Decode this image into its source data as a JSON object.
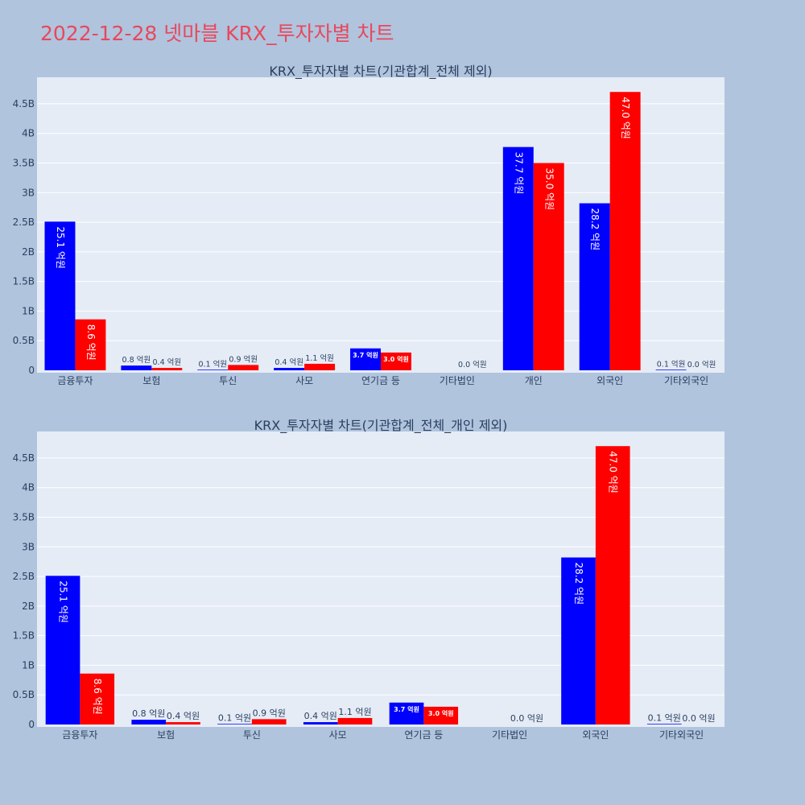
{
  "title": "2022-12-28 넷마블 KRX_투자자별 차트",
  "colors": {
    "background": "#b0c4de",
    "plot_bg": "#e5ecf6",
    "title": "#e8485c",
    "series_1": "#0000ff",
    "series_2": "#ff0000",
    "axis_text": "#2a3f5f"
  },
  "chart_data": [
    {
      "type": "bar",
      "title": "KRX_투자자별 차트(기관합계_전체 제외)",
      "categories": [
        "금융투자",
        "보험",
        "투신",
        "사모",
        "연기금 등",
        "기타법인",
        "개인",
        "외국인",
        "기타외국인"
      ],
      "series": [
        {
          "color": "#0000ff",
          "values": [
            2510000000,
            80000000,
            10000000,
            40000000,
            370000000,
            0,
            3770000000,
            2820000000,
            10000000
          ],
          "labels": [
            "25.1 억원",
            "0.8 억원",
            "0.1 억원",
            "0.4 억원",
            "3.7 억원",
            "",
            "37.7 억원",
            "28.2 억원",
            "0.1 억원"
          ]
        },
        {
          "color": "#ff0000",
          "values": [
            860000000,
            40000000,
            90000000,
            110000000,
            300000000,
            0,
            3500000000,
            4700000000,
            0
          ],
          "labels": [
            "8.6 억원",
            "0.4 억원",
            "0.9 억원",
            "1.1 억원",
            "3.0 억원",
            "0.0 억원",
            "35.0 억원",
            "47.0 억원",
            "0.0 억원"
          ]
        }
      ],
      "yticks": [
        "0",
        "0.5B",
        "1B",
        "1.5B",
        "2B",
        "2.5B",
        "3B",
        "3.5B",
        "4B",
        "4.5B"
      ],
      "ylim": [
        0,
        4947368421
      ],
      "grid": true
    },
    {
      "type": "bar",
      "title": "KRX_투자자별 차트(기관합계_전체_개인 제외)",
      "categories": [
        "금융투자",
        "보험",
        "투신",
        "사모",
        "연기금 등",
        "기타법인",
        "외국인",
        "기타외국인"
      ],
      "series": [
        {
          "color": "#0000ff",
          "values": [
            2510000000,
            80000000,
            10000000,
            40000000,
            370000000,
            0,
            2820000000,
            10000000
          ],
          "labels": [
            "25.1 억원",
            "0.8 억원",
            "0.1 억원",
            "0.4 억원",
            "3.7 억원",
            "",
            "28.2 억원",
            "0.1 억원"
          ]
        },
        {
          "color": "#ff0000",
          "values": [
            860000000,
            40000000,
            90000000,
            110000000,
            300000000,
            0,
            4700000000,
            0
          ],
          "labels": [
            "8.6 억원",
            "0.4 억원",
            "0.9 억원",
            "1.1 억원",
            "3.0 억원",
            "0.0 억원",
            "47.0 억원",
            "0.0 억원"
          ]
        }
      ],
      "yticks": [
        "0",
        "0.5B",
        "1B",
        "1.5B",
        "2B",
        "2.5B",
        "3B",
        "3.5B",
        "4B",
        "4.5B"
      ],
      "ylim": [
        0,
        4947368421
      ],
      "grid": true
    }
  ]
}
